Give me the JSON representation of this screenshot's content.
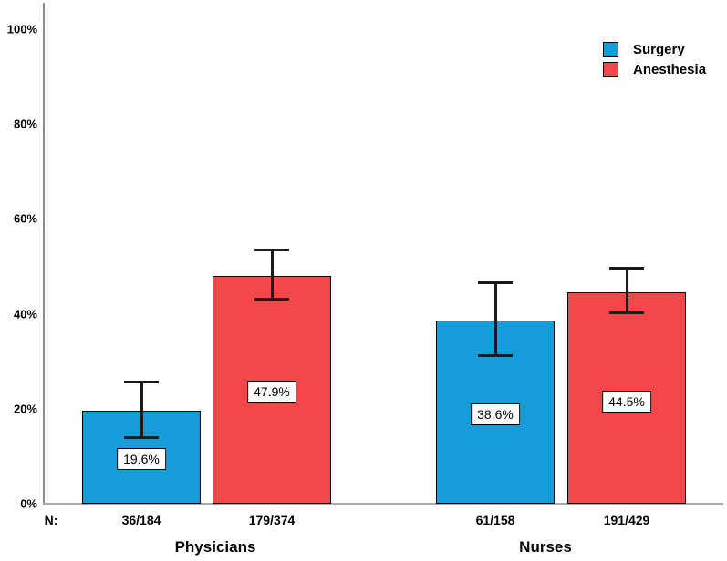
{
  "chart_data": {
    "type": "bar",
    "title": "",
    "xlabel": "",
    "ylabel": "",
    "ylim": [
      0,
      100
    ],
    "grid": false,
    "legend_position": "top-right",
    "n_row_prefix": "N:",
    "yticks": [
      {
        "value": 0,
        "label": "0%"
      },
      {
        "value": 20,
        "label": "20%"
      },
      {
        "value": 40,
        "label": "40%"
      },
      {
        "value": 60,
        "label": "60%"
      },
      {
        "value": 80,
        "label": "80%"
      },
      {
        "value": 100,
        "label": "100%"
      }
    ],
    "series": [
      {
        "name": "Surgery",
        "color": "#169CD8"
      },
      {
        "name": "Anesthesia",
        "color": "#F4474B"
      }
    ],
    "groups": [
      {
        "name": "Physicians",
        "bars": [
          {
            "series": "Surgery",
            "value": 19.6,
            "value_label": "19.6%",
            "n": "36/184",
            "ci_low": 14.0,
            "ci_high": 25.7
          },
          {
            "series": "Anesthesia",
            "value": 47.9,
            "value_label": "47.9%",
            "n": "179/374",
            "ci_low": 43.1,
            "ci_high": 53.4
          }
        ]
      },
      {
        "name": "Nurses",
        "bars": [
          {
            "series": "Surgery",
            "value": 38.6,
            "value_label": "38.6%",
            "n": "61/158",
            "ci_low": 31.2,
            "ci_high": 46.6
          },
          {
            "series": "Anesthesia",
            "value": 44.5,
            "value_label": "44.5%",
            "n": "191/429",
            "ci_low": 40.2,
            "ci_high": 49.6
          }
        ]
      }
    ],
    "colors": {
      "y_axis": "#8c8c8c",
      "x_axis": "#a9a9a9",
      "error_bar": "#1a1a1a",
      "value_box_bg": "#ffffff",
      "text": "#000000"
    }
  }
}
